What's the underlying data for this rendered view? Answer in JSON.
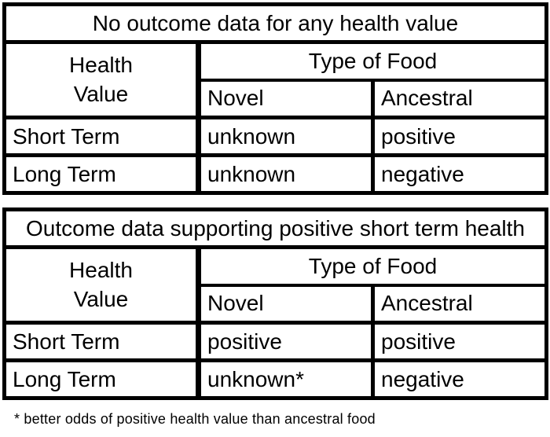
{
  "colors": {
    "border": "#000000",
    "text": "#000000",
    "background": "#ffffff"
  },
  "tables": [
    {
      "title": "No outcome data for any health value",
      "row_axis_label": "Health\nValue",
      "col_axis_label": "Type of Food",
      "col_headers": [
        "Novel",
        "Ancestral"
      ],
      "rows": [
        {
          "label": "Short Term",
          "novel": "unknown",
          "ancestral": "positive"
        },
        {
          "label": "Long Term",
          "novel": "unknown",
          "ancestral": "negative"
        }
      ]
    },
    {
      "title": "Outcome data supporting positive short term health",
      "row_axis_label": "Health\nValue",
      "col_axis_label": "Type of Food",
      "col_headers": [
        "Novel",
        "Ancestral"
      ],
      "rows": [
        {
          "label": "Short Term",
          "novel": "positive",
          "ancestral": "positive"
        },
        {
          "label": "Long Term",
          "novel": "unknown*",
          "ancestral": "negative"
        }
      ]
    }
  ],
  "footnote": "* better odds of positive health value than ancestral food"
}
